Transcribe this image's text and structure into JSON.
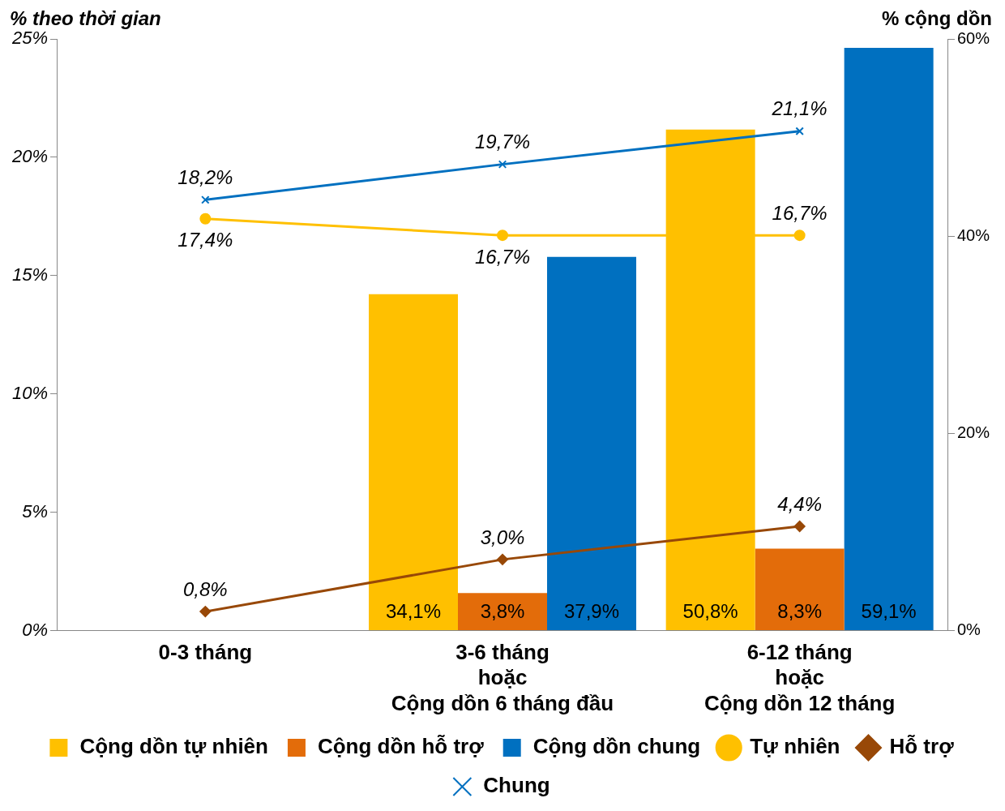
{
  "chart_data": {
    "type": "bar",
    "ylabel": "% theo thời gian",
    "y2label": "% cộng dồn",
    "categories": [
      "0-3 tháng",
      "3-6 tháng\nhoặc\nCộng dồn 6 tháng đầu",
      "6-12 tháng\nhoặc\nCộng dồn 12 tháng"
    ],
    "series": [
      {
        "name": "Cộng dồn tự nhiên",
        "axis": "y2",
        "color": "#ffc000",
        "values": [
          null,
          34.1,
          50.8
        ],
        "value_labels": [
          null,
          "34,1%",
          "50,8%"
        ]
      },
      {
        "name": "Cộng dồn hỗ trợ",
        "axis": "y2",
        "color": "#e36c0a",
        "values": [
          null,
          3.8,
          8.3
        ],
        "value_labels": [
          null,
          "3,8%",
          "8,3%"
        ]
      },
      {
        "name": "Cộng dồn chung",
        "axis": "y2",
        "color": "#0070c0",
        "values": [
          null,
          37.9,
          59.1
        ],
        "value_labels": [
          null,
          "37,9%",
          "59,1%"
        ]
      },
      {
        "name": "Tự nhiên",
        "type": "line",
        "color": "#ffc000",
        "marker": "circle",
        "values": [
          17.4,
          16.7,
          16.7
        ],
        "value_labels": [
          "17,4%",
          "16,7%",
          "16,7%"
        ]
      },
      {
        "name": "Hỗ trợ",
        "type": "line",
        "color": "#984807",
        "marker": "diamond",
        "values": [
          0.8,
          3.0,
          4.4
        ],
        "value_labels": [
          "0,8%",
          "3,0%",
          "4,4%"
        ]
      },
      {
        "name": "Chung",
        "type": "line",
        "color": "#0070c0",
        "marker": "cross",
        "values": [
          18.2,
          19.7,
          21.1
        ],
        "value_labels": [
          "18,2%",
          "19,7%",
          "21,1%"
        ]
      }
    ],
    "ylim": [
      0,
      25
    ],
    "yticks": [
      {
        "value": 0,
        "label": "0%"
      },
      {
        "value": 5,
        "label": "5%"
      },
      {
        "value": 10,
        "label": "10%"
      },
      {
        "value": 15,
        "label": "15%"
      },
      {
        "value": 20,
        "label": "20%"
      },
      {
        "value": 25,
        "label": "25%"
      }
    ],
    "y2lim": [
      0,
      60
    ],
    "y2ticks": [
      {
        "value": 0,
        "label": "0%"
      },
      {
        "value": 20,
        "label": "20%"
      },
      {
        "value": 40,
        "label": "40%"
      },
      {
        "value": 60,
        "label": "60%"
      }
    ],
    "grid": false,
    "legend": "bottom",
    "line_style": "solid"
  }
}
